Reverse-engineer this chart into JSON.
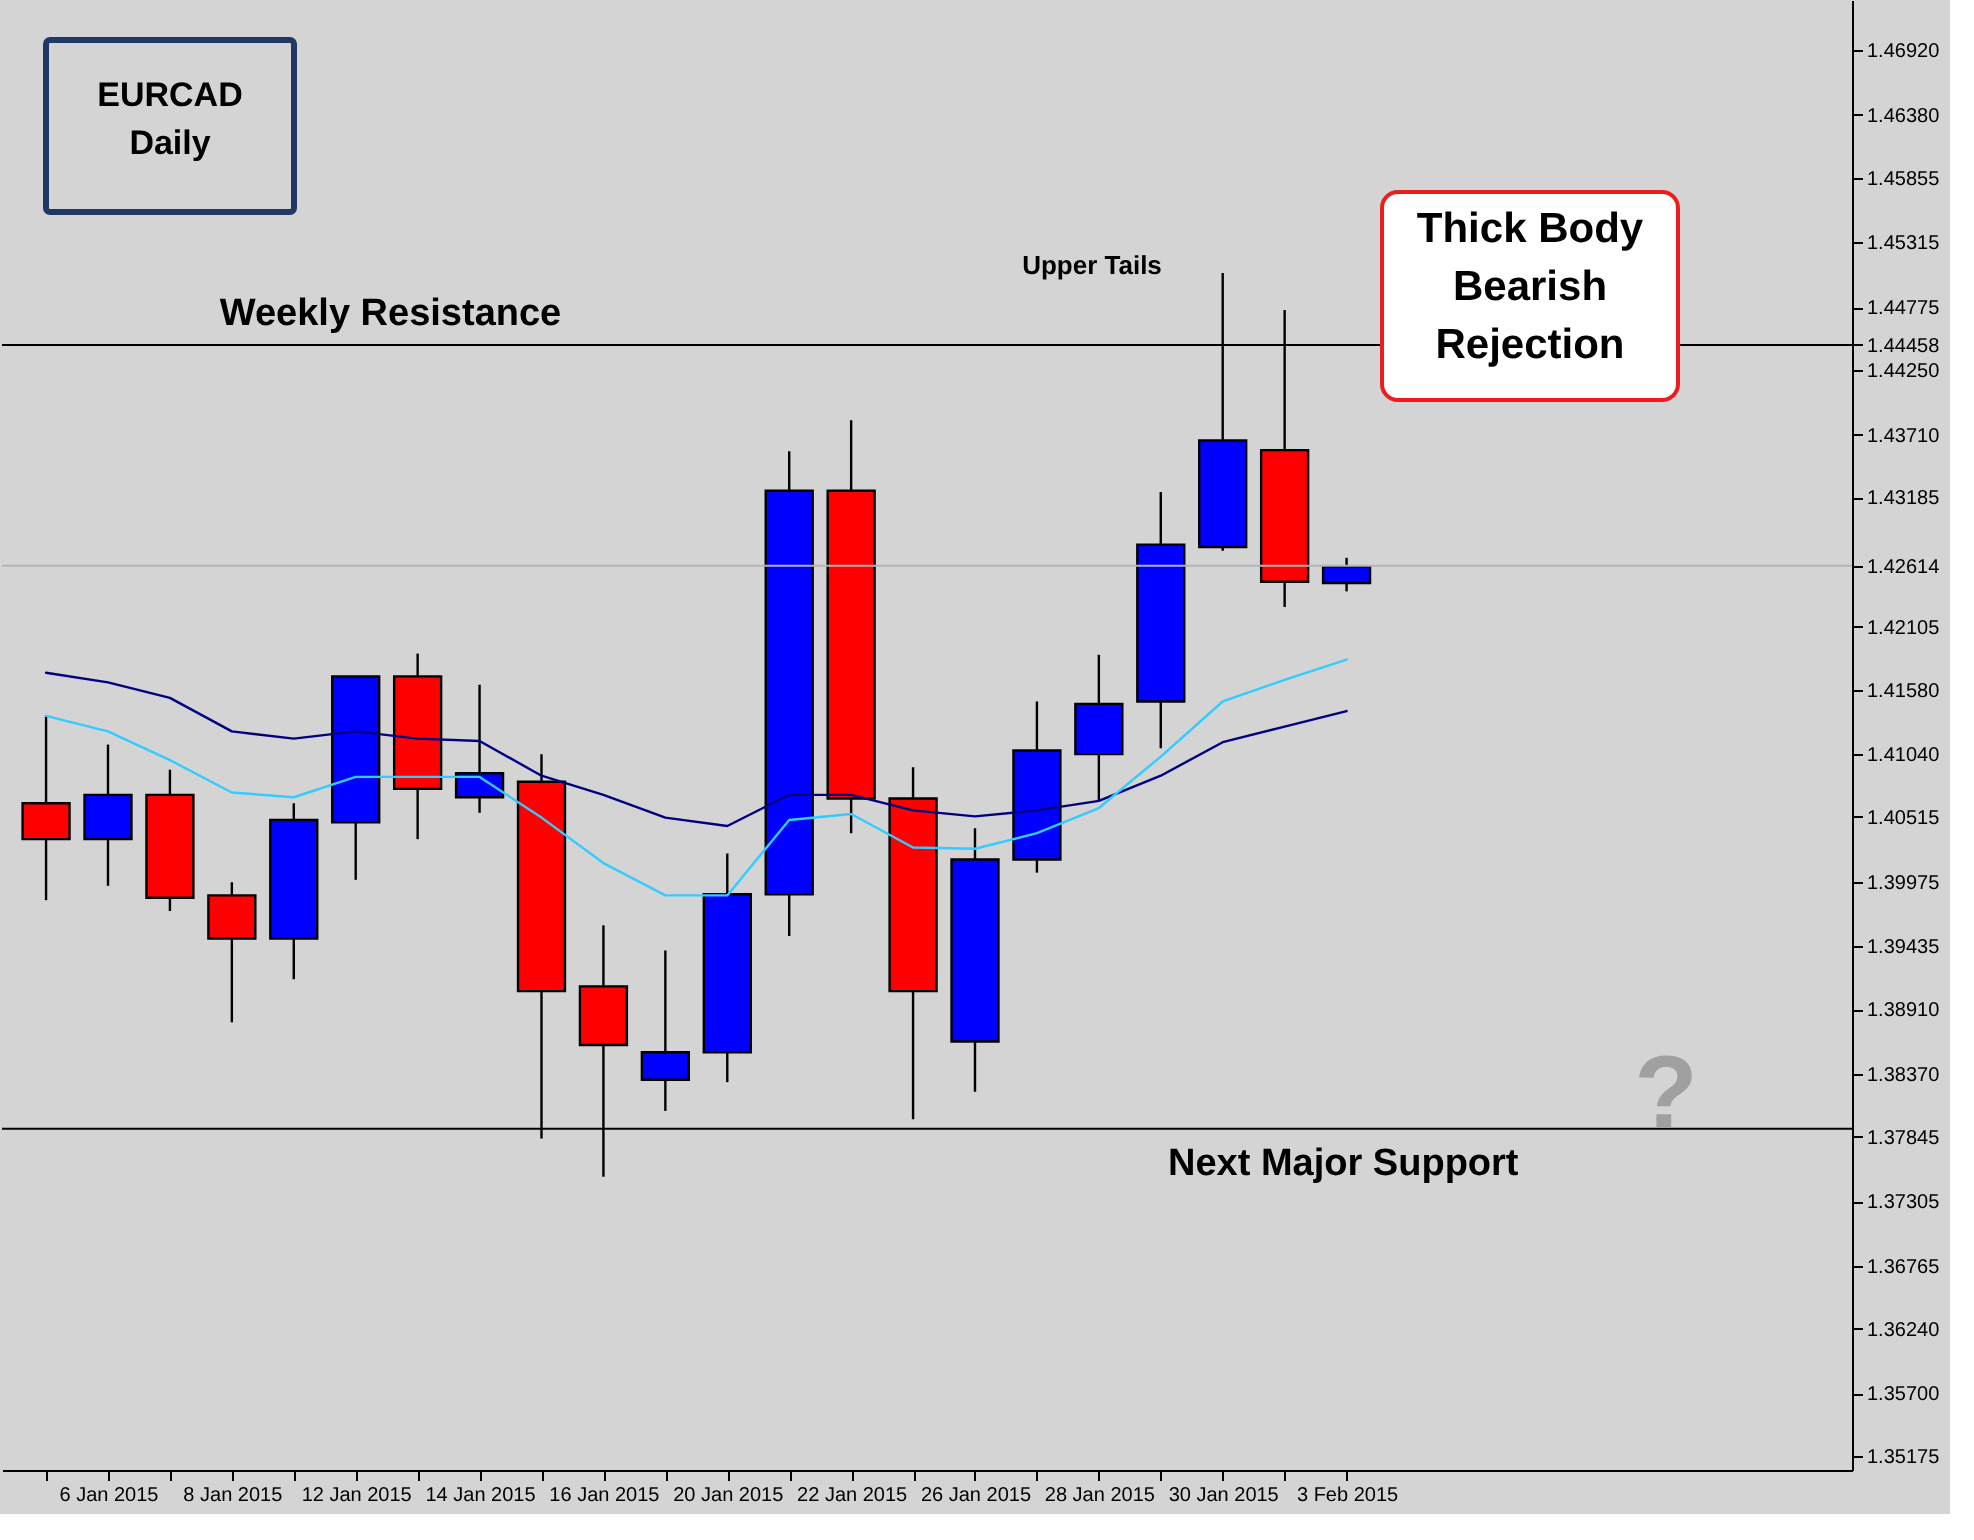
{
  "chart_data": {
    "type": "candlestick",
    "title": "EURCAD",
    "subtitle": "Daily",
    "categories": [
      null,
      "6 Jan 2015",
      null,
      "8 Jan 2015",
      null,
      "12 Jan 2015",
      null,
      "14 Jan 2015",
      null,
      "16 Jan 2015",
      null,
      "20 Jan 2015",
      null,
      "22 Jan 2015",
      null,
      "26 Jan 2015",
      null,
      "28 Jan 2015",
      null,
      "30 Jan 2015",
      null,
      "3 Feb 2015"
    ],
    "ohlc": [
      [
        1.4063,
        1.4136,
        1.3982,
        1.4033
      ],
      [
        1.4033,
        1.4112,
        1.3994,
        1.407
      ],
      [
        1.407,
        1.4091,
        1.3973,
        1.3984
      ],
      [
        1.3986,
        1.3997,
        1.388,
        1.395
      ],
      [
        1.395,
        1.4063,
        1.3916,
        1.4049
      ],
      [
        1.4047,
        1.4169,
        1.3999,
        1.4169
      ],
      [
        1.4169,
        1.4188,
        1.4033,
        1.4075
      ],
      [
        1.4068,
        1.4162,
        1.4055,
        1.4088
      ],
      [
        1.4081,
        1.4104,
        1.3783,
        1.3906
      ],
      [
        1.391,
        1.3961,
        1.3751,
        1.3861
      ],
      [
        1.3832,
        1.394,
        1.3806,
        1.3855
      ],
      [
        1.3855,
        1.4021,
        1.383,
        1.3987
      ],
      [
        1.3987,
        1.4357,
        1.3952,
        1.4324
      ],
      [
        1.4324,
        1.4383,
        1.4038,
        1.4067
      ],
      [
        1.4067,
        1.4093,
        1.3799,
        1.3906
      ],
      [
        1.3864,
        1.4042,
        1.3822,
        1.4016
      ],
      [
        1.4016,
        1.4148,
        1.4005,
        1.4107
      ],
      [
        1.4104,
        1.4187,
        1.4065,
        1.4146
      ],
      [
        1.4148,
        1.4323,
        1.4109,
        1.4279
      ],
      [
        1.4277,
        1.4506,
        1.4274,
        1.4366
      ],
      [
        1.4358,
        1.4475,
        1.4227,
        1.4248
      ],
      [
        1.4247,
        1.4268,
        1.424,
        1.4261
      ]
    ],
    "colors": [
      "#ff0000",
      "#0000ff",
      "#ff0000",
      "#ff0000",
      "#0000ff",
      "#0000ff",
      "#ff0000",
      "#0000ff",
      "#ff0000",
      "#ff0000",
      "#0000ff",
      "#0000ff",
      "#0000ff",
      "#ff0000",
      "#ff0000",
      "#0000ff",
      "#0000ff",
      "#0000ff",
      "#0000ff",
      "#0000ff",
      "#ff0000",
      "#0000ff"
    ],
    "series": [
      {
        "type": "line",
        "color": "#000080",
        "values": [
          1.4172,
          1.4164,
          1.4151,
          1.4123,
          1.4117,
          1.4123,
          1.4117,
          1.4115,
          1.4086,
          1.407,
          1.4051,
          1.4044,
          1.407,
          1.407,
          1.4057,
          1.4052,
          1.4057,
          1.4065,
          1.4086,
          1.4114,
          1.4127,
          1.414
        ]
      },
      {
        "type": "line",
        "color": "#33ccff",
        "values": [
          1.4136,
          1.4123,
          1.4099,
          1.4072,
          1.4068,
          1.4085,
          1.4085,
          1.4085,
          1.4051,
          1.4013,
          1.3986,
          1.3986,
          1.4049,
          1.4054,
          1.4026,
          1.4025,
          1.4038,
          1.4059,
          1.4102,
          1.4148,
          1.4166,
          1.4183
        ]
      }
    ],
    "ylim": [
      1.3506,
      1.4734
    ],
    "yticks": [
      {
        "value": 1.4692,
        "label": "1.46920"
      },
      {
        "value": 1.4638,
        "label": "1.46380"
      },
      {
        "value": 1.45855,
        "label": "1.45855"
      },
      {
        "value": 1.45315,
        "label": "1.45315"
      },
      {
        "value": 1.44775,
        "label": "1.44775"
      },
      {
        "value": 1.44458,
        "label": "1.44458"
      },
      {
        "value": 1.4425,
        "label": "1.44250"
      },
      {
        "value": 1.4371,
        "label": "1.43710"
      },
      {
        "value": 1.43185,
        "label": "1.43185"
      },
      {
        "value": 1.42614,
        "label": "1.42614"
      },
      {
        "value": 1.42105,
        "label": "1.42105"
      },
      {
        "value": 1.4158,
        "label": "1.41580"
      },
      {
        "value": 1.4104,
        "label": "1.41040"
      },
      {
        "value": 1.40515,
        "label": "1.40515"
      },
      {
        "value": 1.39975,
        "label": "1.39975"
      },
      {
        "value": 1.39435,
        "label": "1.39435"
      },
      {
        "value": 1.3891,
        "label": "1.38910"
      },
      {
        "value": 1.3837,
        "label": "1.38370"
      },
      {
        "value": 1.37845,
        "label": "1.37845"
      },
      {
        "value": 1.37305,
        "label": "1.37305"
      },
      {
        "value": 1.36765,
        "label": "1.36765"
      },
      {
        "value": 1.3624,
        "label": "1.36240"
      },
      {
        "value": 1.357,
        "label": "1.35700"
      },
      {
        "value": 1.35175,
        "label": "1.35175"
      }
    ],
    "ref_lines": [
      {
        "axis": "y",
        "value": 1.44458,
        "label": "Weekly Resistance",
        "color": "#000000"
      },
      {
        "axis": "y",
        "value": 1.42614,
        "color": "#b4b4b4"
      },
      {
        "axis": "y",
        "value": 1.3791,
        "label": "Next Major Support",
        "color": "#000000"
      }
    ],
    "annotations": [
      "Upper Tails",
      "Thick Body\nBearish\nRejection",
      "?"
    ],
    "grid": false
  }
}
